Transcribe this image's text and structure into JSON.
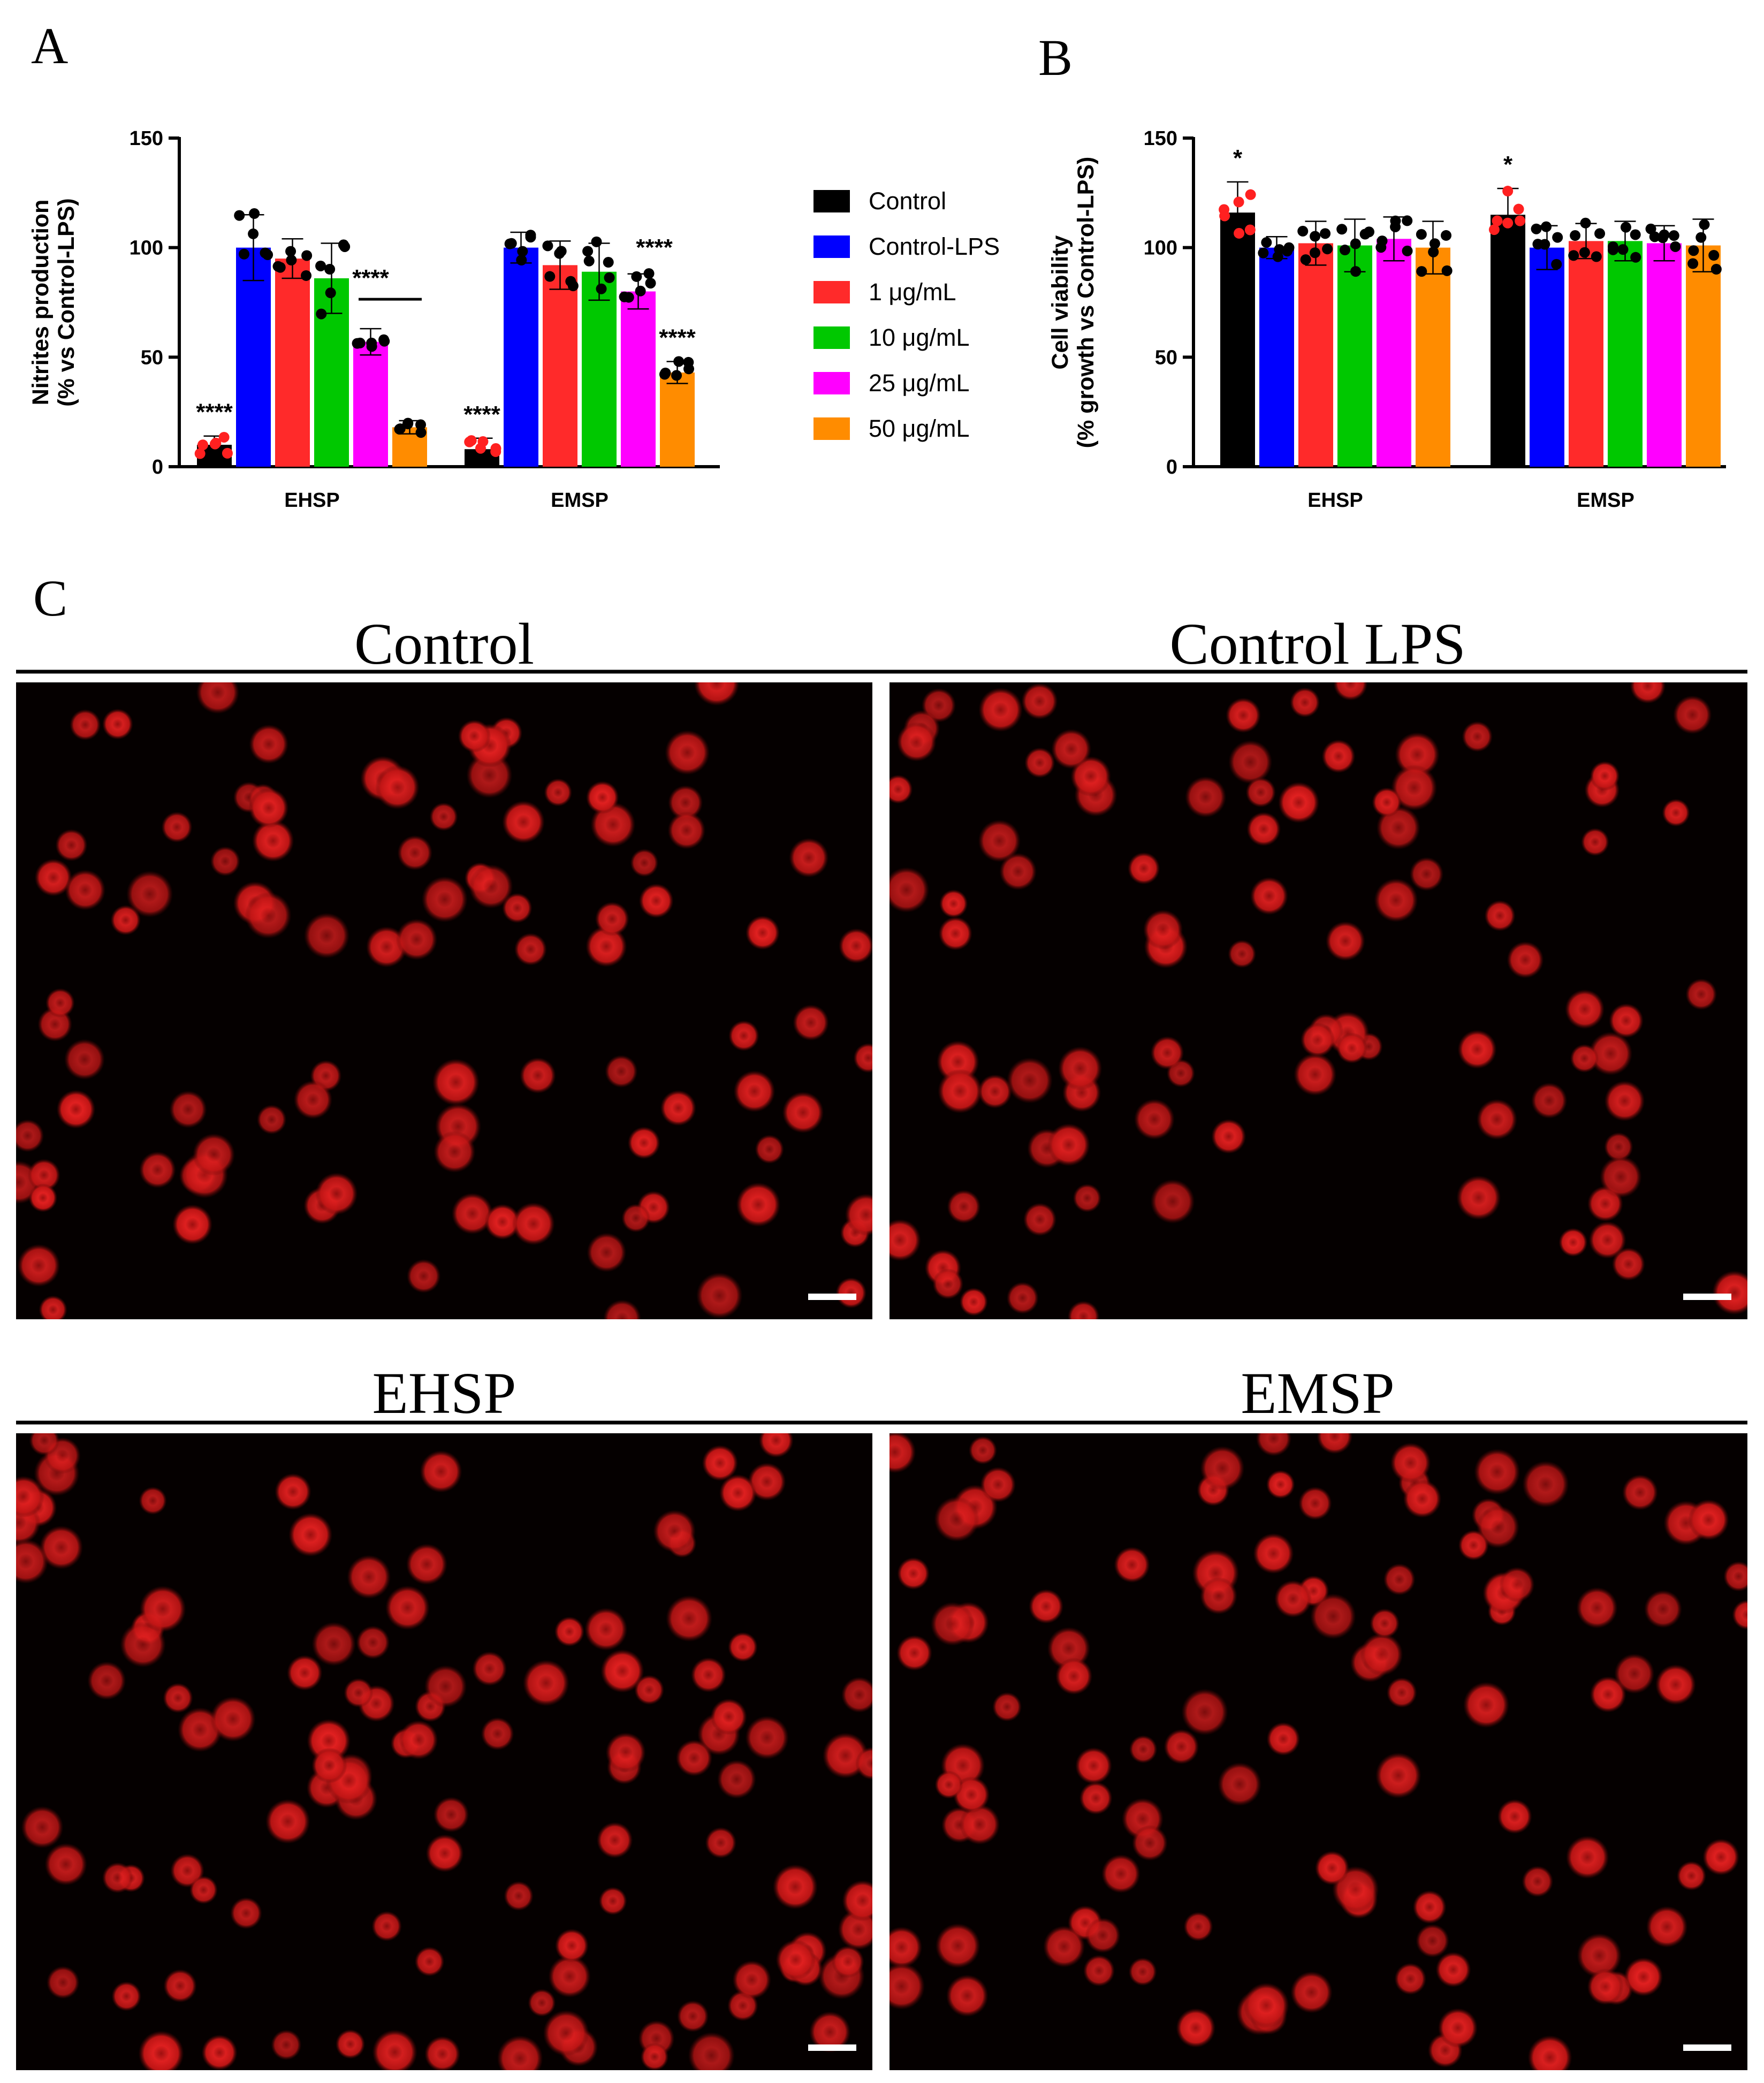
{
  "panels": {
    "A": "A",
    "B": "B",
    "C": "C"
  },
  "legend": [
    {
      "label": "Control",
      "color": "#000000"
    },
    {
      "label": "Control-LPS",
      "color": "#0000ff"
    },
    {
      "label": "1 μg/mL",
      "color": "#ff2a2a"
    },
    {
      "label": "10 μg/mL",
      "color": "#00c800"
    },
    {
      "label": "25 μg/mL",
      "color": "#ff00ff"
    },
    {
      "label": "50 μg/mL",
      "color": "#ff8c00"
    }
  ],
  "chart_data": [
    {
      "panel": "A",
      "type": "bar",
      "ylabel_line1": "Nitrites production",
      "ylabel_line2": "(% vs Control-LPS)",
      "ylim": [
        0,
        150
      ],
      "yticks": [
        "0",
        "50",
        "100",
        "150"
      ],
      "groups": [
        "EHSP",
        "EMSP"
      ],
      "series": [
        {
          "name": "Control",
          "values": [
            10,
            8
          ],
          "errors": [
            4,
            5
          ]
        },
        {
          "name": "Control-LPS",
          "values": [
            100,
            100
          ],
          "errors": [
            15,
            7
          ]
        },
        {
          "name": "1 μg/mL",
          "values": [
            95,
            92
          ],
          "errors": [
            9,
            11
          ]
        },
        {
          "name": "10 μg/mL",
          "values": [
            86,
            89
          ],
          "errors": [
            16,
            13
          ]
        },
        {
          "name": "25 μg/mL",
          "values": [
            57,
            80
          ],
          "errors": [
            6,
            8
          ]
        },
        {
          "name": "50 μg/mL",
          "values": [
            18,
            43
          ],
          "errors": [
            3,
            5
          ]
        }
      ],
      "annotations": [
        {
          "text": "****",
          "group": 0,
          "bar": 0
        },
        {
          "text": "****",
          "group": 0,
          "bar": 4
        },
        {
          "text": "****",
          "group": 1,
          "bar": 0
        },
        {
          "text": "****",
          "group": 1,
          "bar": 4
        },
        {
          "text": "****",
          "group": 1,
          "bar": 5
        }
      ]
    },
    {
      "panel": "B",
      "type": "bar",
      "ylabel_line1": "Cell viability",
      "ylabel_line2": "(% growth vs Control-LPS)",
      "ylim": [
        0,
        150
      ],
      "yticks": [
        "0",
        "50",
        "100",
        "150"
      ],
      "groups": [
        "EHSP",
        "EMSP"
      ],
      "series": [
        {
          "name": "Control",
          "values": [
            116,
            115
          ],
          "errors": [
            14,
            12
          ]
        },
        {
          "name": "Control-LPS",
          "values": [
            100,
            100
          ],
          "errors": [
            5,
            10
          ]
        },
        {
          "name": "1 μg/mL",
          "values": [
            102,
            103
          ],
          "errors": [
            10,
            8
          ]
        },
        {
          "name": "10 μg/mL",
          "values": [
            101,
            103
          ],
          "errors": [
            12,
            9
          ]
        },
        {
          "name": "25 μg/mL",
          "values": [
            104,
            102
          ],
          "errors": [
            10,
            8
          ]
        },
        {
          "name": "50 μg/mL",
          "values": [
            100,
            101
          ],
          "errors": [
            12,
            12
          ]
        }
      ],
      "annotations": [
        {
          "text": "*",
          "group": 0,
          "bar": 0
        },
        {
          "text": "*",
          "group": 1,
          "bar": 0
        }
      ]
    }
  ],
  "images": [
    {
      "title": "Control"
    },
    {
      "title": "Control LPS"
    },
    {
      "title": "EHSP"
    },
    {
      "title": "EMSP"
    }
  ]
}
